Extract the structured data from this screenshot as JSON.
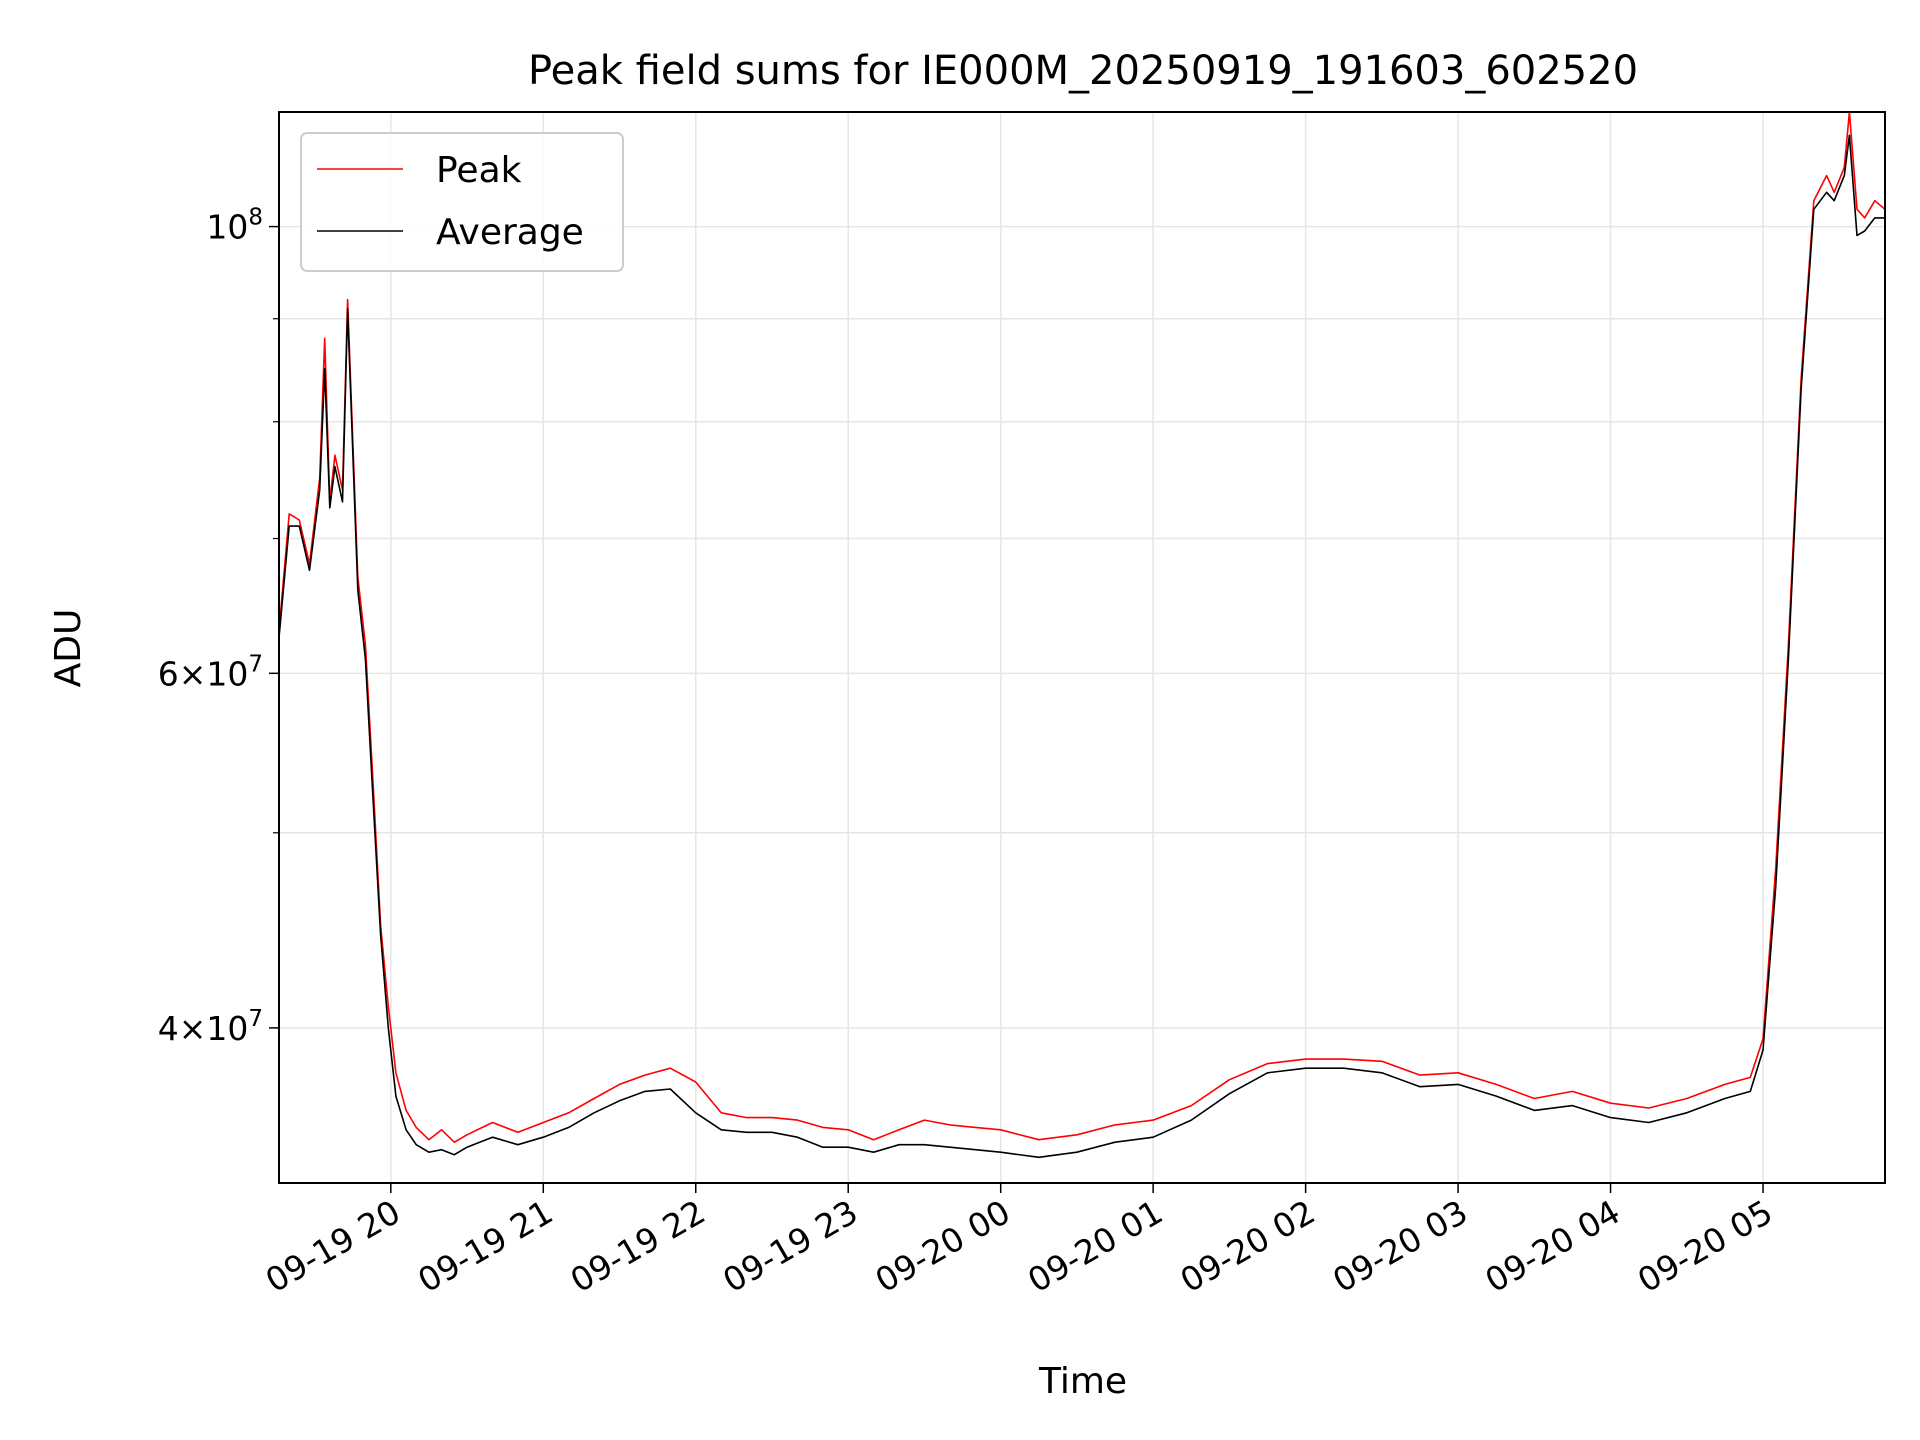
{
  "chart_data": {
    "type": "line",
    "title": "Peak field sums for IE000M_20250919_191603_602520",
    "xlabel": "Time",
    "ylabel": "ADU",
    "y_scale": "log",
    "ylim": [
      33500000,
      114000000
    ],
    "xlim": [
      "2025-09-19 19:16",
      "2025-09-20 05:48"
    ],
    "grid": true,
    "legend_position": "top-left",
    "x_ticks": [
      {
        "t": "2025-09-19 20:00",
        "label": "09-19 20"
      },
      {
        "t": "2025-09-19 21:00",
        "label": "09-19 21"
      },
      {
        "t": "2025-09-19 22:00",
        "label": "09-19 22"
      },
      {
        "t": "2025-09-19 23:00",
        "label": "09-19 23"
      },
      {
        "t": "2025-09-20 00:00",
        "label": "09-20 00"
      },
      {
        "t": "2025-09-20 01:00",
        "label": "09-20 01"
      },
      {
        "t": "2025-09-20 02:00",
        "label": "09-20 02"
      },
      {
        "t": "2025-09-20 03:00",
        "label": "09-20 03"
      },
      {
        "t": "2025-09-20 04:00",
        "label": "09-20 04"
      },
      {
        "t": "2025-09-20 05:00",
        "label": "09-20 05"
      }
    ],
    "y_ticks_major": [
      {
        "value": 40000000,
        "mantissa": "4",
        "exp": "7"
      },
      {
        "value": 60000000,
        "mantissa": "6",
        "exp": "7"
      },
      {
        "value": 100000000,
        "mantissa": "",
        "exp": "8"
      }
    ],
    "y_ticks_minor": [
      50000000,
      70000000,
      80000000,
      90000000
    ],
    "series": [
      {
        "name": "Peak",
        "color": "#ff0000",
        "x": [
          "2025-09-19 19:16",
          "2025-09-19 19:20",
          "2025-09-19 19:24",
          "2025-09-19 19:28",
          "2025-09-19 19:32",
          "2025-09-19 19:34",
          "2025-09-19 19:36",
          "2025-09-19 19:38",
          "2025-09-19 19:41",
          "2025-09-19 19:43",
          "2025-09-19 19:47",
          "2025-09-19 19:50",
          "2025-09-19 19:53",
          "2025-09-19 19:56",
          "2025-09-19 19:59",
          "2025-09-19 20:02",
          "2025-09-19 20:06",
          "2025-09-19 20:10",
          "2025-09-19 20:15",
          "2025-09-19 20:20",
          "2025-09-19 20:25",
          "2025-09-19 20:30",
          "2025-09-19 20:40",
          "2025-09-19 20:50",
          "2025-09-19 21:00",
          "2025-09-19 21:10",
          "2025-09-19 21:20",
          "2025-09-19 21:30",
          "2025-09-19 21:40",
          "2025-09-19 21:50",
          "2025-09-19 22:00",
          "2025-09-19 22:10",
          "2025-09-19 22:20",
          "2025-09-19 22:30",
          "2025-09-19 22:40",
          "2025-09-19 22:50",
          "2025-09-19 23:00",
          "2025-09-19 23:10",
          "2025-09-19 23:20",
          "2025-09-19 23:30",
          "2025-09-19 23:40",
          "2025-09-19 23:50",
          "2025-09-20 00:00",
          "2025-09-20 00:15",
          "2025-09-20 00:30",
          "2025-09-20 00:45",
          "2025-09-20 01:00",
          "2025-09-20 01:15",
          "2025-09-20 01:30",
          "2025-09-20 01:45",
          "2025-09-20 02:00",
          "2025-09-20 02:15",
          "2025-09-20 02:30",
          "2025-09-20 02:45",
          "2025-09-20 03:00",
          "2025-09-20 03:15",
          "2025-09-20 03:30",
          "2025-09-20 03:45",
          "2025-09-20 04:00",
          "2025-09-20 04:15",
          "2025-09-20 04:30",
          "2025-09-20 04:45",
          "2025-09-20 04:55",
          "2025-09-20 05:00",
          "2025-09-20 05:05",
          "2025-09-20 05:10",
          "2025-09-20 05:15",
          "2025-09-20 05:20",
          "2025-09-20 05:25",
          "2025-09-20 05:28",
          "2025-09-20 05:32",
          "2025-09-20 05:34",
          "2025-09-20 05:37",
          "2025-09-20 05:40",
          "2025-09-20 05:44",
          "2025-09-20 05:48"
        ],
        "y": [
          63000000,
          72000000,
          71500000,
          68000000,
          75000000,
          88000000,
          73000000,
          77000000,
          74000000,
          92000000,
          67000000,
          62000000,
          53000000,
          45000000,
          41000000,
          38000000,
          36400000,
          35700000,
          35200000,
          35600000,
          35100000,
          35400000,
          35900000,
          35500000,
          35900000,
          36300000,
          36900000,
          37500000,
          37900000,
          38200000,
          37600000,
          36300000,
          36100000,
          36100000,
          36000000,
          35700000,
          35600000,
          35200000,
          35600000,
          36000000,
          35800000,
          35700000,
          35600000,
          35200000,
          35400000,
          35800000,
          36000000,
          36600000,
          37700000,
          38400000,
          38600000,
          38600000,
          38500000,
          37900000,
          38000000,
          37500000,
          36900000,
          37200000,
          36700000,
          36500000,
          36900000,
          37500000,
          37800000,
          39500000,
          48000000,
          62000000,
          84000000,
          103000000,
          106000000,
          104000000,
          107000000,
          114000000,
          102000000,
          101000000,
          103000000,
          102000000
        ]
      },
      {
        "name": "Average",
        "color": "#000000",
        "x": [
          "2025-09-19 19:16",
          "2025-09-19 19:20",
          "2025-09-19 19:24",
          "2025-09-19 19:28",
          "2025-09-19 19:32",
          "2025-09-19 19:34",
          "2025-09-19 19:36",
          "2025-09-19 19:38",
          "2025-09-19 19:41",
          "2025-09-19 19:43",
          "2025-09-19 19:47",
          "2025-09-19 19:50",
          "2025-09-19 19:53",
          "2025-09-19 19:56",
          "2025-09-19 19:59",
          "2025-09-19 20:02",
          "2025-09-19 20:06",
          "2025-09-19 20:10",
          "2025-09-19 20:15",
          "2025-09-19 20:20",
          "2025-09-19 20:25",
          "2025-09-19 20:30",
          "2025-09-19 20:40",
          "2025-09-19 20:50",
          "2025-09-19 21:00",
          "2025-09-19 21:10",
          "2025-09-19 21:20",
          "2025-09-19 21:30",
          "2025-09-19 21:40",
          "2025-09-19 21:50",
          "2025-09-19 22:00",
          "2025-09-19 22:10",
          "2025-09-19 22:20",
          "2025-09-19 22:30",
          "2025-09-19 22:40",
          "2025-09-19 22:50",
          "2025-09-19 23:00",
          "2025-09-19 23:10",
          "2025-09-19 23:20",
          "2025-09-19 23:30",
          "2025-09-19 23:40",
          "2025-09-19 23:50",
          "2025-09-20 00:00",
          "2025-09-20 00:15",
          "2025-09-20 00:30",
          "2025-09-20 00:45",
          "2025-09-20 01:00",
          "2025-09-20 01:15",
          "2025-09-20 01:30",
          "2025-09-20 01:45",
          "2025-09-20 02:00",
          "2025-09-20 02:15",
          "2025-09-20 02:30",
          "2025-09-20 02:45",
          "2025-09-20 03:00",
          "2025-09-20 03:15",
          "2025-09-20 03:30",
          "2025-09-20 03:45",
          "2025-09-20 04:00",
          "2025-09-20 04:15",
          "2025-09-20 04:30",
          "2025-09-20 04:45",
          "2025-09-20 04:55",
          "2025-09-20 05:00",
          "2025-09-20 05:05",
          "2025-09-20 05:10",
          "2025-09-20 05:15",
          "2025-09-20 05:20",
          "2025-09-20 05:25",
          "2025-09-20 05:28",
          "2025-09-20 05:32",
          "2025-09-20 05:34",
          "2025-09-20 05:37",
          "2025-09-20 05:40",
          "2025-09-20 05:44",
          "2025-09-20 05:48"
        ],
        "y": [
          62500000,
          71000000,
          71000000,
          67500000,
          74000000,
          85000000,
          72500000,
          76000000,
          73000000,
          91000000,
          66000000,
          61000000,
          52000000,
          44500000,
          40000000,
          37000000,
          35600000,
          35000000,
          34700000,
          34800000,
          34600000,
          34900000,
          35300000,
          35000000,
          35300000,
          35700000,
          36300000,
          36800000,
          37200000,
          37300000,
          36300000,
          35600000,
          35500000,
          35500000,
          35300000,
          34900000,
          34900000,
          34700000,
          35000000,
          35000000,
          34900000,
          34800000,
          34700000,
          34500000,
          34700000,
          35100000,
          35300000,
          36000000,
          37100000,
          38000000,
          38200000,
          38200000,
          38000000,
          37400000,
          37500000,
          37000000,
          36400000,
          36600000,
          36100000,
          35900000,
          36300000,
          36900000,
          37200000,
          39000000,
          47000000,
          61000000,
          83000000,
          102000000,
          104000000,
          103000000,
          106000000,
          111000000,
          99000000,
          99500000,
          101000000,
          101000000
        ]
      }
    ]
  }
}
